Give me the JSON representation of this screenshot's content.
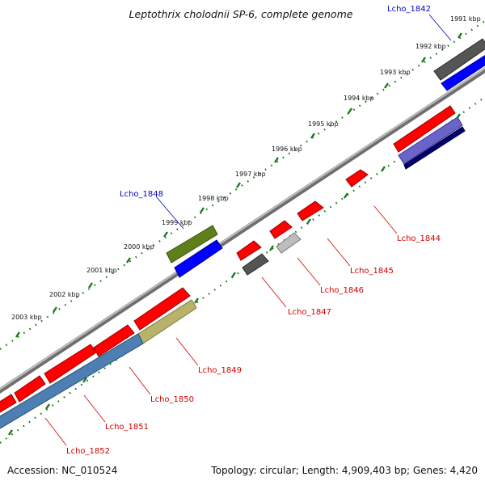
{
  "title": "Leptothrix cholodnii SP-6, complete genome",
  "footer": {
    "accession": "Accession: NC_010524",
    "summary": "Topology: circular; Length: 4,909,403 bp; Genes: 4,420"
  },
  "scale": {
    "ticks": [
      "1991 kbp",
      "1992 kbp",
      "1993 kbp",
      "1994 kbp",
      "1995 kbp",
      "1996 kbp",
      "1997 kbp",
      "1998 kbp",
      "1999 kbp",
      "2000 kbp",
      "2001 kbp",
      "2002 kbp",
      "2003 kbp"
    ]
  },
  "genes": {
    "lcho_1842": "Lcho_1842",
    "lcho_1844": "Lcho_1844",
    "lcho_1845": "Lcho_1845",
    "lcho_1846": "Lcho_1846",
    "lcho_1847": "Lcho_1847",
    "lcho_1848": "Lcho_1848",
    "lcho_1849": "Lcho_1849",
    "lcho_1850": "Lcho_1850",
    "lcho_1851": "Lcho_1851",
    "lcho_1852": "Lcho_1852"
  },
  "colors": {
    "forward_gene": "#ff0000",
    "reverse_gene": "#0000ff",
    "backbone": "#8c8c8c",
    "dark_gene": "#555555",
    "light_gene": "#bdbdbd",
    "olive_gene": "#5f7f1a",
    "khaki_gene": "#b7b36a",
    "steel_gene": "#4d7fb2",
    "purple_gene": "#6a63c9",
    "navy_gene": "#00006e",
    "ruler": "#1a7a1a",
    "label_red": "#d00000",
    "label_blue": "#0000c8"
  }
}
